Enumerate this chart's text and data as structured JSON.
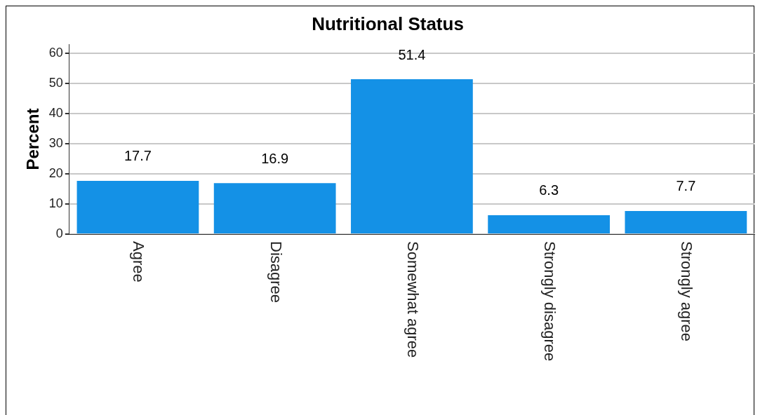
{
  "chart_data": {
    "type": "bar",
    "title": "Nutritional Status",
    "ylabel": "Percent",
    "categories": [
      "Agree",
      "Disagree",
      "Somewhat agree",
      "Strongly disagree",
      "Strongly agree"
    ],
    "values": [
      17.7,
      16.9,
      51.4,
      6.3,
      7.7
    ],
    "color": "#1491e6",
    "ylim": [
      0,
      63
    ],
    "yticks": [
      0,
      10,
      20,
      30,
      40,
      50,
      60
    ],
    "grid": "y",
    "data_labels": true,
    "legend": false
  }
}
